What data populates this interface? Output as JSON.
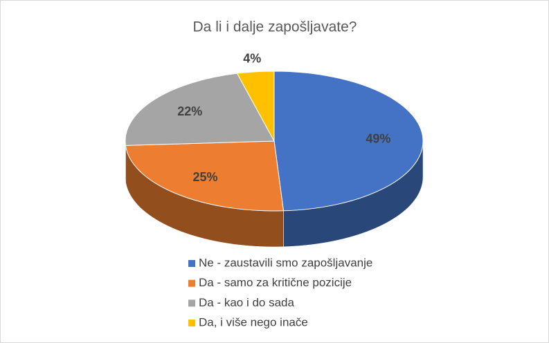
{
  "chart_data": {
    "type": "pie3d",
    "title": "Da li i dalje zapošljavate?",
    "categories": [
      "Ne - zaustavili smo zapošljavanje",
      "Da - samo za kritične pozicije",
      "Da - kao i do sada",
      "Da, i više nego inače"
    ],
    "values": [
      49,
      25,
      22,
      4
    ],
    "value_labels": [
      "49%",
      "25%",
      "22%",
      "4%"
    ],
    "colors": [
      "#4472c4",
      "#ed7d31",
      "#a5a5a5",
      "#ffc000"
    ]
  }
}
